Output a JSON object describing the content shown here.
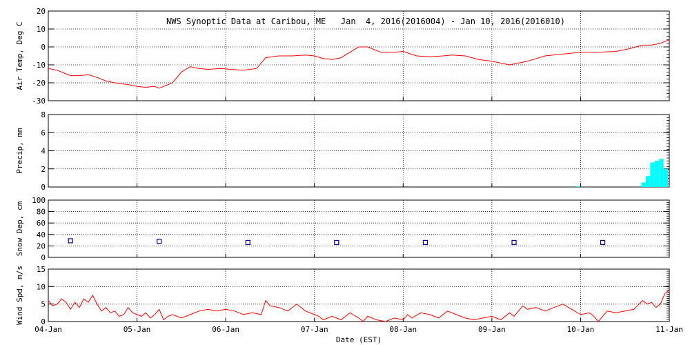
{
  "title": "NWS Synoptic Data at Caribou, ME   Jan  4, 2016(2016004) - Jan 10, 2016(2016010)",
  "xlabel": "Date (EST)",
  "x_tick_labels": [
    "04-Jan",
    "05-Jan",
    "06-Jan",
    "07-Jan",
    "08-Jan",
    "09-Jan",
    "10-Jan",
    "11-Jan"
  ],
  "colors": {
    "temp": "#ff0000",
    "precip": "#00ffff",
    "snow": "#00008b",
    "wind": "#ff0000",
    "axis": "#000000"
  },
  "chart_data": [
    {
      "type": "line",
      "ylabel": "Air Temp, Deg C",
      "ylim": [
        -30,
        20
      ],
      "yticks": [
        -30,
        -20,
        -10,
        0,
        10,
        20
      ],
      "x_unit": "days since 04-Jan 00:00",
      "series": [
        {
          "x": [
            0,
            0.1,
            0.2,
            0.25,
            0.35,
            0.45,
            0.55,
            0.65,
            0.75,
            0.9,
            1.0,
            1.1,
            1.2,
            1.25,
            1.3,
            1.4,
            1.5,
            1.6,
            1.7,
            1.8,
            1.95,
            2.05,
            2.2,
            2.35,
            2.45,
            2.6,
            2.75,
            2.9,
            3.0,
            3.1,
            3.2,
            3.3,
            3.4,
            3.5,
            3.6,
            3.75,
            3.9,
            4.0,
            4.15,
            4.3,
            4.45,
            4.55,
            4.7,
            4.85,
            5.0,
            5.2,
            5.4,
            5.6,
            5.8,
            6.0,
            6.2,
            6.4,
            6.55,
            6.7,
            6.8,
            6.9,
            7.0
          ],
          "y": [
            -12,
            -13,
            -15,
            -16,
            -16,
            -15.5,
            -17,
            -19,
            -20,
            -21,
            -22,
            -22.5,
            -22,
            -23,
            -22,
            -20,
            -14,
            -11,
            -12,
            -12.5,
            -12,
            -12.5,
            -13,
            -12,
            -6,
            -5,
            -5,
            -4.5,
            -5,
            -6.5,
            -7,
            -6,
            -3,
            0,
            0,
            -3,
            -3,
            -2.5,
            -5,
            -5.5,
            -5,
            -4.5,
            -5,
            -7,
            -8,
            -10,
            -8,
            -5,
            -4,
            -3,
            -3,
            -2.5,
            -1,
            1,
            1,
            2,
            4
          ]
        }
      ]
    },
    {
      "type": "bar",
      "ylabel": "Precip, mm",
      "ylim": [
        0,
        8
      ],
      "yticks": [
        0,
        2,
        4,
        6,
        8
      ],
      "x_unit": "days since 04-Jan 00:00",
      "x": [
        5.97,
        6.71,
        6.76,
        6.81,
        6.86,
        6.91,
        6.96
      ],
      "values": [
        0.1,
        0.5,
        1.2,
        2.7,
        2.9,
        3.1,
        2.0
      ]
    },
    {
      "type": "scatter",
      "ylabel": "Snow Dep, cm",
      "ylim": [
        0,
        100
      ],
      "yticks": [
        0,
        20,
        40,
        60,
        80,
        100
      ],
      "x_unit": "days since 04-Jan 00:00",
      "x": [
        0.25,
        1.25,
        2.25,
        3.25,
        4.25,
        5.25,
        6.25
      ],
      "y": [
        29,
        28,
        26,
        26,
        26,
        26,
        26
      ]
    },
    {
      "type": "line",
      "ylabel": "Wind Spd, m/s",
      "ylim": [
        0,
        15
      ],
      "yticks": [
        0,
        5,
        10,
        15
      ],
      "x_unit": "days since 04-Jan 00:00",
      "series": [
        {
          "x": [
            0,
            0.05,
            0.1,
            0.15,
            0.2,
            0.25,
            0.3,
            0.35,
            0.4,
            0.45,
            0.5,
            0.55,
            0.6,
            0.65,
            0.7,
            0.75,
            0.8,
            0.85,
            0.9,
            0.95,
            1.0,
            1.05,
            1.1,
            1.15,
            1.2,
            1.25,
            1.3,
            1.35,
            1.4,
            1.5,
            1.6,
            1.7,
            1.8,
            1.9,
            2.0,
            2.1,
            2.2,
            2.3,
            2.4,
            2.45,
            2.5,
            2.6,
            2.7,
            2.8,
            2.9,
            3.0,
            3.05,
            3.1,
            3.2,
            3.3,
            3.4,
            3.5,
            3.55,
            3.6,
            3.7,
            3.8,
            3.9,
            4.0,
            4.05,
            4.1,
            4.2,
            4.3,
            4.4,
            4.5,
            4.6,
            4.7,
            4.8,
            4.9,
            5.0,
            5.1,
            5.2,
            5.25,
            5.3,
            5.35,
            5.4,
            5.5,
            5.6,
            5.7,
            5.8,
            5.9,
            6.0,
            6.1,
            6.15,
            6.2,
            6.3,
            6.4,
            6.5,
            6.6,
            6.7,
            6.75,
            6.8,
            6.85,
            6.9,
            6.95,
            7.0
          ],
          "y": [
            6,
            4.5,
            5,
            6.5,
            5.5,
            3.5,
            5.5,
            4,
            6.5,
            5.5,
            7.5,
            5,
            3,
            4,
            2.5,
            3,
            1.5,
            2,
            4,
            2.5,
            2,
            1.5,
            2.5,
            1,
            2,
            3.5,
            0.5,
            1.5,
            2,
            1,
            2,
            3,
            3.5,
            3,
            3.5,
            3,
            2,
            2.5,
            2,
            6,
            4.5,
            4,
            3,
            5,
            3,
            2,
            1.5,
            0.5,
            1.5,
            0.5,
            2.5,
            1,
            0,
            1.5,
            0.5,
            0,
            1,
            0.5,
            2,
            1,
            2.5,
            2,
            1,
            3,
            2,
            1,
            0.5,
            1,
            1.5,
            0.5,
            2.5,
            1.5,
            3,
            4.5,
            3.5,
            4,
            3,
            4,
            5,
            3.5,
            2,
            2.5,
            1.5,
            0,
            3,
            2.5,
            3,
            3.5,
            6,
            5,
            5.5,
            4,
            5,
            8,
            9
          ]
        }
      ]
    }
  ]
}
